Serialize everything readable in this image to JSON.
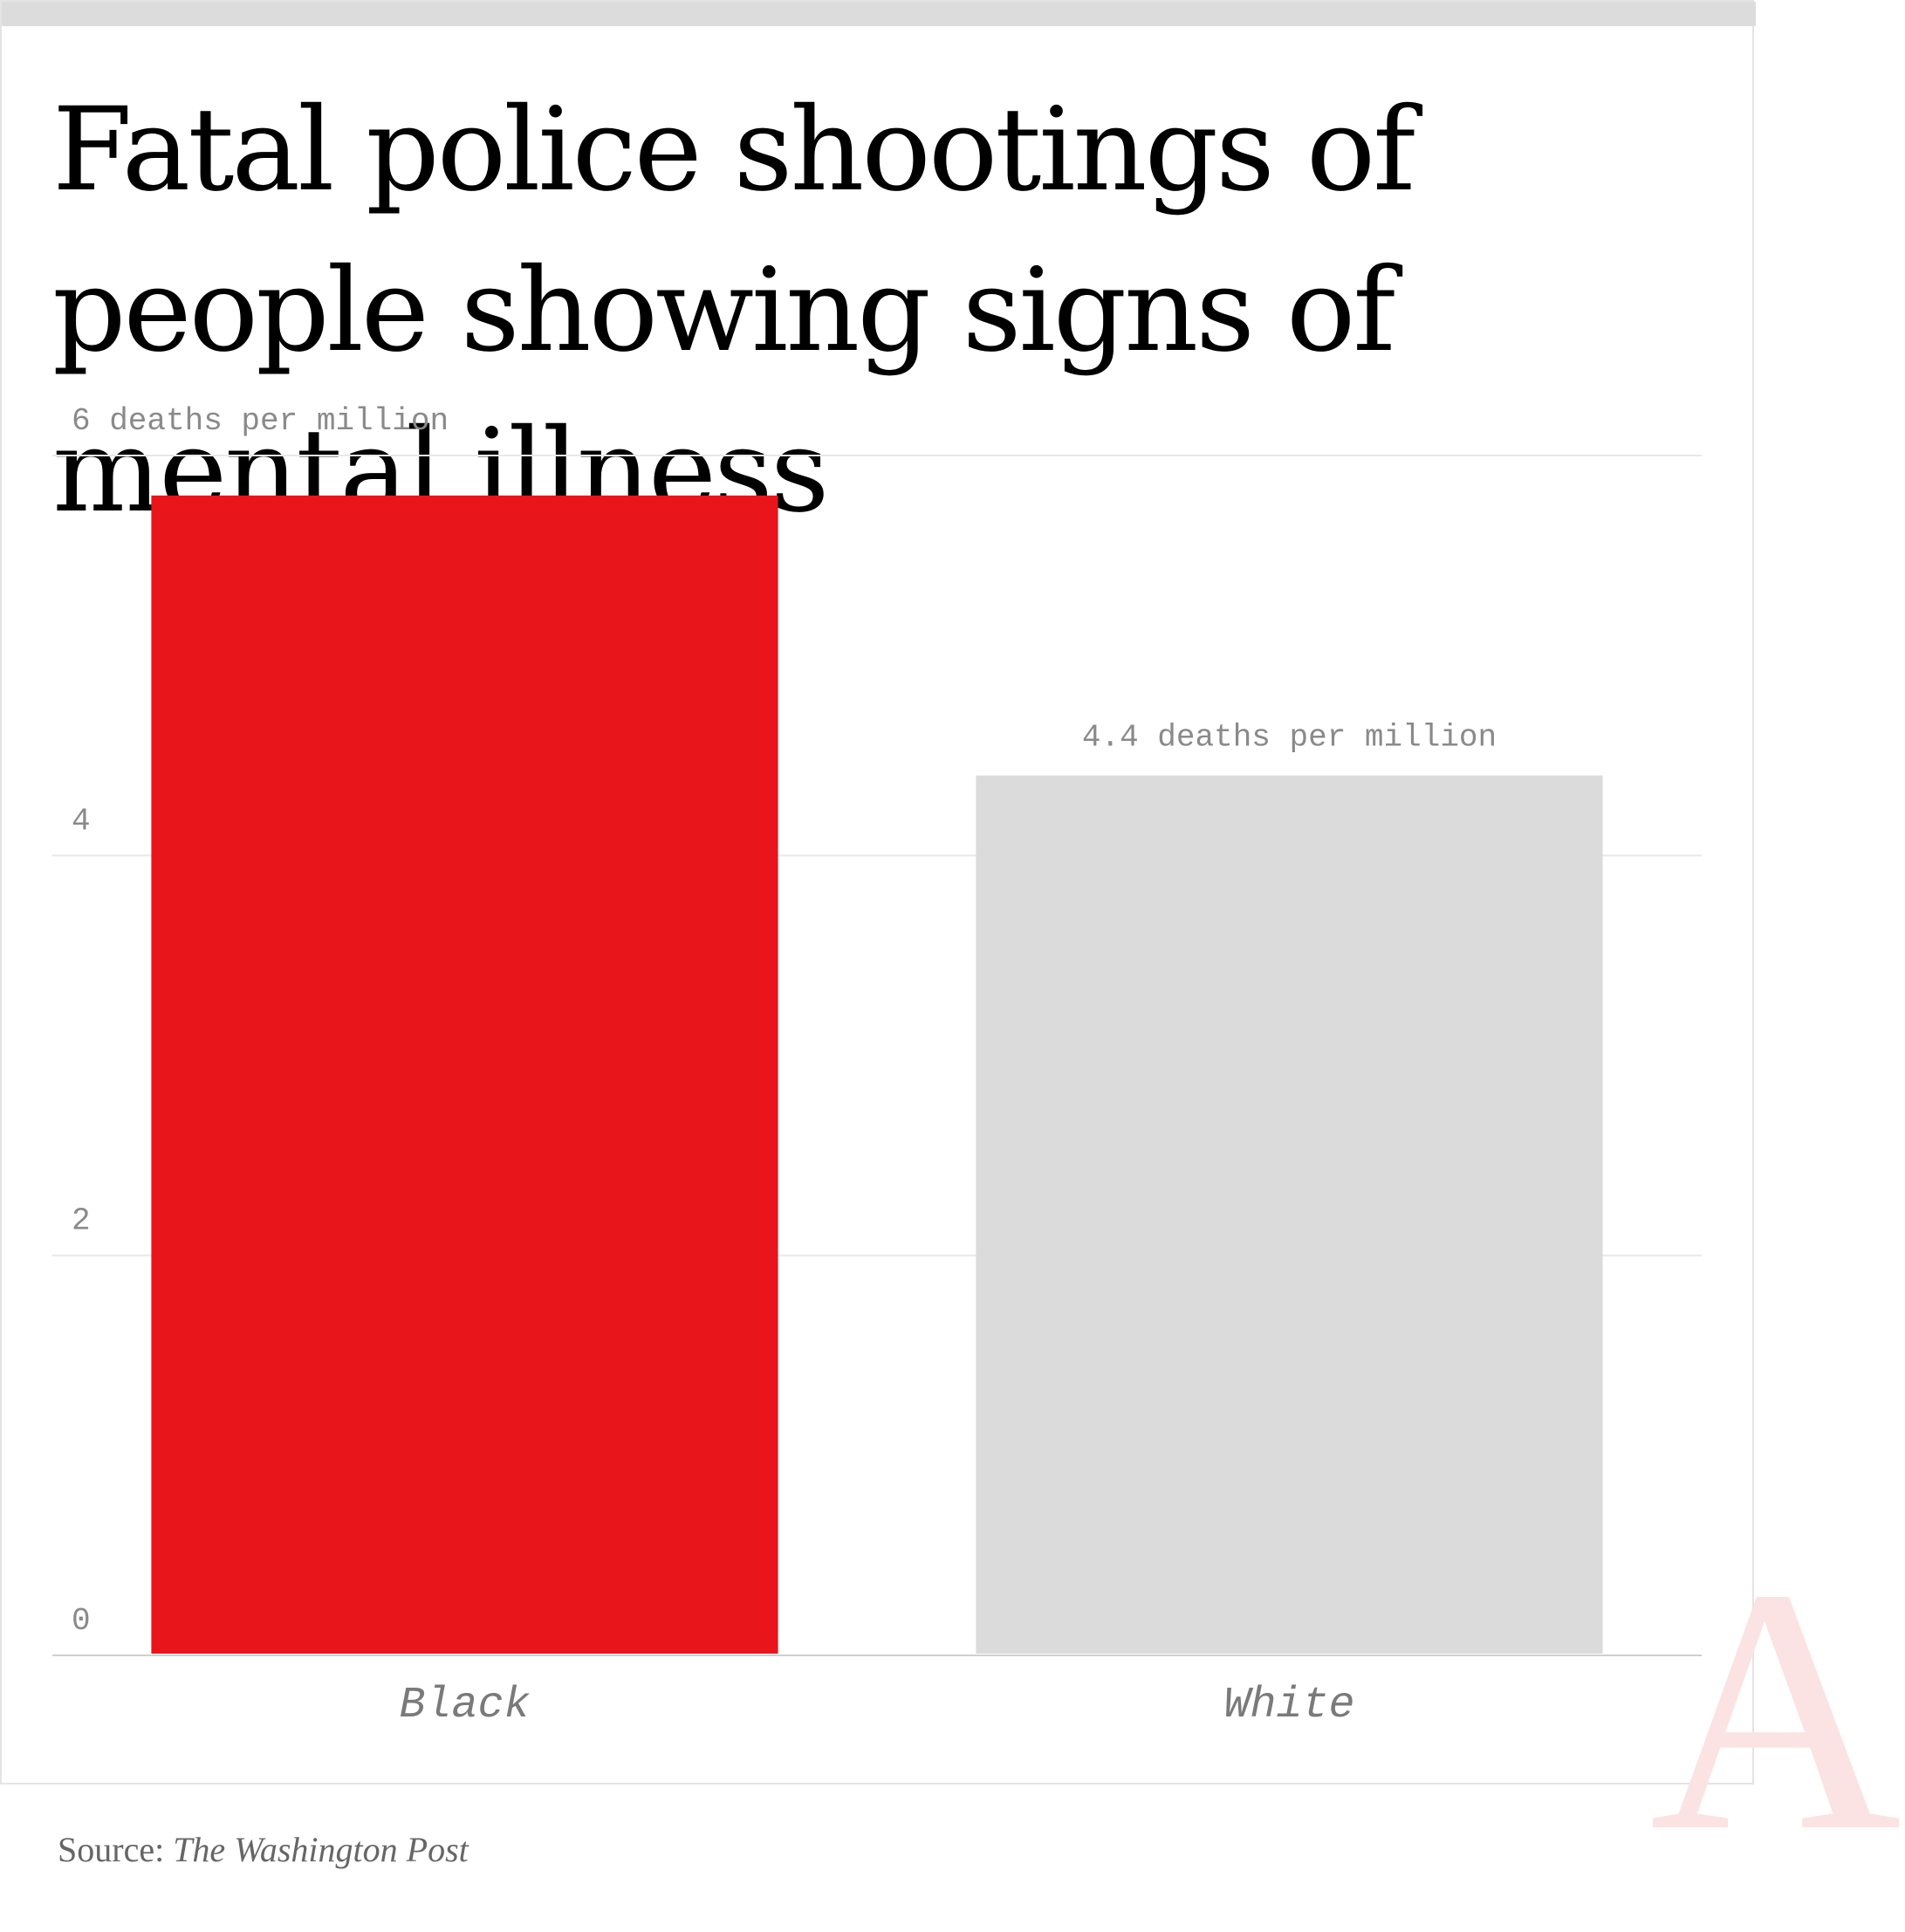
{
  "chart_data": {
    "type": "bar",
    "title": "Fatal police shootings of people showing signs of mental illness",
    "categories": [
      "Black",
      "White"
    ],
    "values": [
      5.8,
      4.4
    ],
    "bar_colors": [
      "#e8151b",
      "#dbdbdb"
    ],
    "data_labels": [
      "",
      "4.4 deaths per million"
    ],
    "y_ticks": [
      {
        "value": 0,
        "label": "0"
      },
      {
        "value": 2,
        "label": "2"
      },
      {
        "value": 4,
        "label": "4"
      },
      {
        "value": 6,
        "label": "6 deaths per million"
      }
    ],
    "ylim": [
      0,
      6
    ],
    "grid": true,
    "xlabel": "",
    "ylabel": ""
  },
  "source": {
    "prefix": "Source: ",
    "name": "The Washington Post"
  },
  "logo": {
    "letter": "A",
    "color": "#fbe3e3"
  }
}
